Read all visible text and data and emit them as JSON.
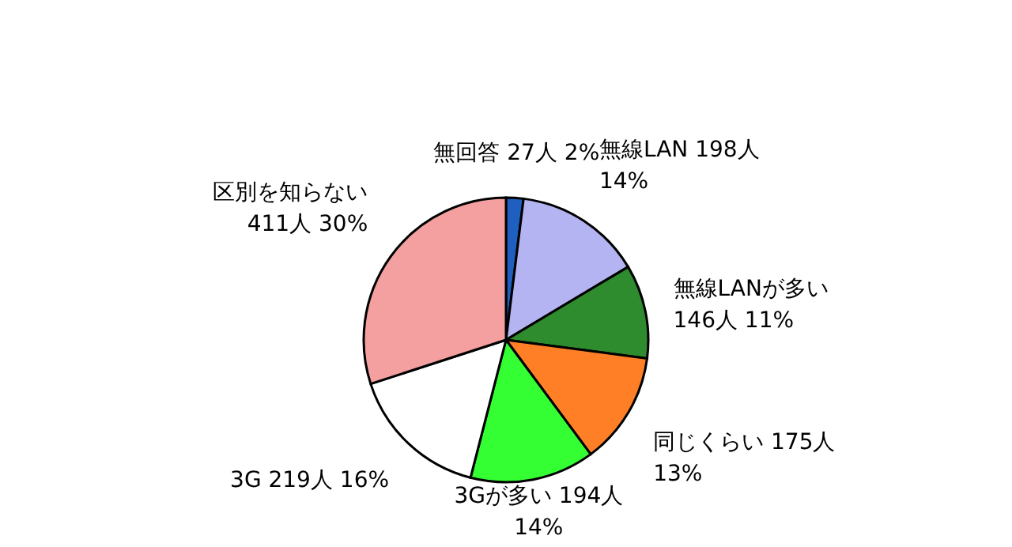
{
  "chart_data": {
    "type": "pie",
    "categories": [
      "無回答",
      "無線LAN",
      "無線LANが多い",
      "同じくらい",
      "3Gが多い",
      "3G",
      "区別を知らない"
    ],
    "values": [
      27,
      198,
      146,
      175,
      194,
      219,
      411
    ],
    "value_labels": [
      "27人 2%",
      "198人 14%",
      "146人 11%",
      "175人 13%",
      "194人 14%",
      "219人 16%",
      "411人 30%"
    ],
    "colors": [
      "#1f5fbf",
      "#b4b4f2",
      "#2e8b2e",
      "#ff7f27",
      "#33ff33",
      "#ffffff",
      "#f4a0a0"
    ]
  }
}
